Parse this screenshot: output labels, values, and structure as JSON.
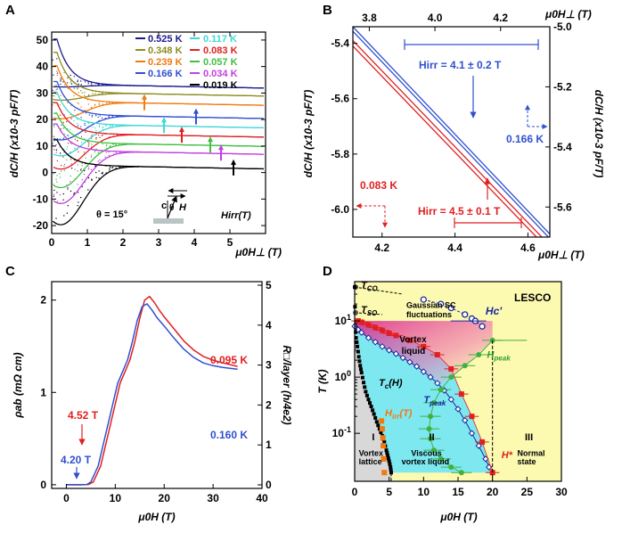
{
  "chart_data": [
    {
      "panel": "A",
      "type": "line",
      "title": "",
      "xlabel": "μ0H⊥ (T)",
      "ylabel": "dC/H (x10-3 pF/T)",
      "xlim": [
        0,
        6
      ],
      "ylim": [
        -23,
        53
      ],
      "xticks": [
        "0",
        "1",
        "2",
        "3",
        "4",
        "5"
      ],
      "yticks": [
        "-20",
        "-10",
        "0",
        "10",
        "20",
        "30",
        "40",
        "50"
      ],
      "annotations": {
        "theta": "θ = 15°",
        "sketch_c": "c",
        "sketch_theta": "θ",
        "sketch_H": "H",
        "hirr": "Hirr(T)"
      },
      "series": [
        {
          "name": "0.525 K",
          "color": "#1a1a8c",
          "tail": 33,
          "min": 32,
          "peak": 50,
          "arrow_x": 0
        },
        {
          "name": "0.348 K",
          "color": "#8c8c20",
          "tail": 30,
          "min": 27,
          "peak": 45,
          "arrow_x": 0
        },
        {
          "name": "0.239 K",
          "color": "#f07a10",
          "tail": 26.5,
          "min": 20,
          "peak": 40,
          "arrow_x": 2.6
        },
        {
          "name": "0.166 K",
          "color": "#3050d0",
          "tail": 21.5,
          "min": 12,
          "peak": 34,
          "arrow_x": 4.05
        },
        {
          "name": "0.117 K",
          "color": "#40d8d8",
          "tail": 18,
          "min": 6,
          "peak": 30,
          "arrow_x": 3.15
        },
        {
          "name": "0.083 K",
          "color": "#e02020",
          "tail": 14.5,
          "min": 1,
          "peak": 26,
          "arrow_x": 3.65
        },
        {
          "name": "0.057 K",
          "color": "#40c040",
          "tail": 11,
          "min": -6,
          "peak": 22,
          "arrow_x": 4.45
        },
        {
          "name": "0.034 K",
          "color": "#c040e0",
          "tail": 8,
          "min": -12,
          "peak": 18,
          "arrow_x": 4.75
        },
        {
          "name": "0.019 K",
          "color": "#000000",
          "tail": 2.5,
          "min": -20,
          "peak": 12,
          "arrow_x": 5.1
        }
      ]
    },
    {
      "panel": "B",
      "type": "line",
      "xlabel_bottom": "μ0H⊥ (T)",
      "xlabel_top": "μ0H⊥ (T)",
      "ylabel_left": "dC/H (x10-3 pF/T)",
      "ylabel_right": "dC/H (x10-3 pF/T)",
      "xlim_bottom": [
        4.12,
        4.66
      ],
      "ylim_left": [
        -6.1,
        -5.34
      ],
      "xlim_top": [
        3.75,
        4.35
      ],
      "ylim_right": [
        -5.7,
        -5.0
      ],
      "xticks_bottom": [
        "4.2",
        "4.4",
        "4.6"
      ],
      "xticks_top": [
        "3.8",
        "4.0",
        "4.2"
      ],
      "yticks_left": [
        "-5.4",
        "-5.6",
        "-5.8",
        "-6.0"
      ],
      "yticks_right": [
        "-5.0",
        "-5.2",
        "-5.4",
        "-5.6"
      ],
      "series": [
        {
          "name": "0.166 K",
          "color": "#3050d0",
          "axes": "top-right",
          "x": [
            3.75,
            4.35
          ],
          "y_up": [
            -5.0,
            -5.69
          ],
          "y_down": [
            -5.015,
            -5.705
          ]
        },
        {
          "name": "0.083 K",
          "color": "#e02020",
          "axes": "bottom-left",
          "x": [
            4.12,
            4.66
          ],
          "y_up": [
            -5.39,
            -6.13
          ],
          "y_down": [
            -5.41,
            -6.15
          ]
        }
      ],
      "annotations": {
        "hirr_blue": "Hirr = 4.1 ± 0.2 T",
        "hirr_red": "Hirr = 4.5 ± 0.1 T",
        "label_blue": "0.166 K",
        "label_red": "0.083 K"
      }
    },
    {
      "panel": "C",
      "type": "line",
      "xlabel": "μ0H (T)",
      "ylabel_left": "ρab (mΩ cm)",
      "ylabel_right": "R□/layer (h/4e2)",
      "xlim": [
        -3,
        40
      ],
      "ylim_left": [
        -0.04,
        2.2
      ],
      "ylim_right": [
        0,
        5
      ],
      "xticks": [
        "0",
        "10",
        "20",
        "30",
        "40"
      ],
      "yticks_left": [
        "0",
        "1",
        "2"
      ],
      "yticks_right": [
        "0",
        "1",
        "2",
        "3",
        "4",
        "5"
      ],
      "series": [
        {
          "name": "0.095 K",
          "color": "#e02020",
          "x": [
            0,
            3,
            4.52,
            5.5,
            7,
            9,
            11,
            13,
            14,
            15,
            16,
            17,
            18,
            19,
            20,
            22,
            24,
            26,
            28,
            30,
            32,
            35
          ],
          "y": [
            0,
            0,
            0.002,
            0.03,
            0.2,
            0.65,
            1.1,
            1.35,
            1.55,
            1.8,
            2.0,
            2.04,
            1.98,
            1.88,
            1.8,
            1.68,
            1.57,
            1.48,
            1.4,
            1.34,
            1.3,
            1.27
          ]
        },
        {
          "name": "0.160 K",
          "color": "#3050d0",
          "x": [
            0,
            3,
            4.2,
            5,
            6.5,
            8.5,
            10.5,
            12.5,
            13.5,
            14.5,
            15.5,
            16.5,
            17.5,
            18.5,
            20,
            22,
            24,
            26,
            28,
            30,
            32,
            35
          ],
          "y": [
            0,
            0,
            0.002,
            0.03,
            0.2,
            0.65,
            1.1,
            1.35,
            1.55,
            1.78,
            1.93,
            1.96,
            1.9,
            1.8,
            1.7,
            1.58,
            1.48,
            1.4,
            1.33,
            1.28,
            1.25,
            1.24
          ]
        }
      ],
      "annotations": {
        "field_red": "4.52 T",
        "field_blue": "4.20 T"
      }
    },
    {
      "panel": "D",
      "type": "scatter",
      "title": "LESCO",
      "xlabel": "μ0H (T)",
      "ylabel": "T (K)",
      "xlim": [
        0,
        30
      ],
      "ylim_log": [
        0.014,
        50
      ],
      "xticks": [
        "0",
        "5",
        "10",
        "15",
        "20",
        "25",
        "30"
      ],
      "yticks": [
        "10-1",
        "100",
        "101"
      ],
      "series": [
        {
          "name": "Tc(H)",
          "color": "#000000",
          "x": [
            0,
            0.1,
            0.2,
            0.4,
            0.6,
            0.8,
            1.0,
            1.3,
            1.6,
            2.0,
            2.4,
            2.8,
            3.2,
            3.6,
            4.0,
            4.3,
            4.6,
            4.8,
            5.0,
            5.2,
            5.3
          ],
          "y": [
            40,
            8,
            5,
            3.5,
            2.3,
            1.6,
            1.2,
            0.8,
            0.55,
            0.4,
            0.3,
            0.22,
            0.16,
            0.12,
            0.09,
            0.07,
            0.05,
            0.04,
            0.032,
            0.025,
            0.02
          ]
        },
        {
          "name": "Hirr(T)",
          "color": "#f07a10",
          "x": [
            4.3,
            4.2,
            4.15,
            4.1,
            4.0,
            3.9
          ],
          "y": [
            0.02,
            0.035,
            0.06,
            0.083,
            0.12,
            0.166
          ]
        },
        {
          "name": "Tpeak",
          "color": "#1a2a9c",
          "x": [
            0,
            0.5,
            1,
            2,
            3,
            4,
            5,
            6,
            7,
            8,
            9,
            10,
            11,
            12,
            13,
            14,
            15,
            16,
            17,
            18,
            19,
            19.5
          ],
          "y": [
            8,
            7,
            6.2,
            5,
            4.2,
            3.5,
            3,
            2.6,
            2.2,
            1.85,
            1.55,
            1.25,
            1.0,
            0.78,
            0.58,
            0.4,
            0.27,
            0.17,
            0.1,
            0.06,
            0.035,
            0.025
          ]
        },
        {
          "name": "Hpeak",
          "color": "#40b040",
          "x": [
            20,
            18,
            16,
            14,
            12.5,
            11.5,
            11,
            10.8,
            11,
            11.5,
            12.5,
            14,
            15.5
          ],
          "y": [
            4.5,
            2.5,
            1.6,
            1.0,
            0.6,
            0.35,
            0.2,
            0.12,
            0.08,
            0.05,
            0.035,
            0.025,
            0.02
          ]
        },
        {
          "name": "H*",
          "color": "#e02020",
          "x": [
            0.5,
            1,
            2,
            3,
            4,
            5,
            6,
            8,
            10,
            12,
            14,
            15.5,
            17,
            18.5,
            20
          ],
          "y": [
            10,
            9.5,
            8.5,
            7.6,
            6.8,
            6,
            5.5,
            4.5,
            3.5,
            2.5,
            1.4,
            0.5,
            0.2,
            0.07,
            0.02
          ]
        },
        {
          "name": "Hc'",
          "color": "#1a2a9c",
          "x": [
            10,
            12.5,
            14,
            16,
            17,
            17.5,
            18.5
          ],
          "y": [
            24,
            20,
            17,
            13,
            11,
            10,
            8
          ]
        }
      ],
      "labels": {
        "tco": "TCO",
        "tso": "TSO",
        "gaussian": "Gaussian SC fluctuations",
        "hc": "Hc'",
        "vortex_liquid": "Vortex liquid",
        "hpeak": "Hpeak",
        "tc": "Tc(H)",
        "tpeak": "Tpeak",
        "hirr": "Hirr(T)",
        "region_I": "I",
        "region_II": "II",
        "region_III": "III",
        "vortex_lattice": "Vortex lattice",
        "viscous": "Viscous vortex liquid",
        "normal": "Normal state",
        "hstar": "H*"
      }
    }
  ],
  "panel_labels": [
    "A",
    "B",
    "C",
    "D"
  ]
}
